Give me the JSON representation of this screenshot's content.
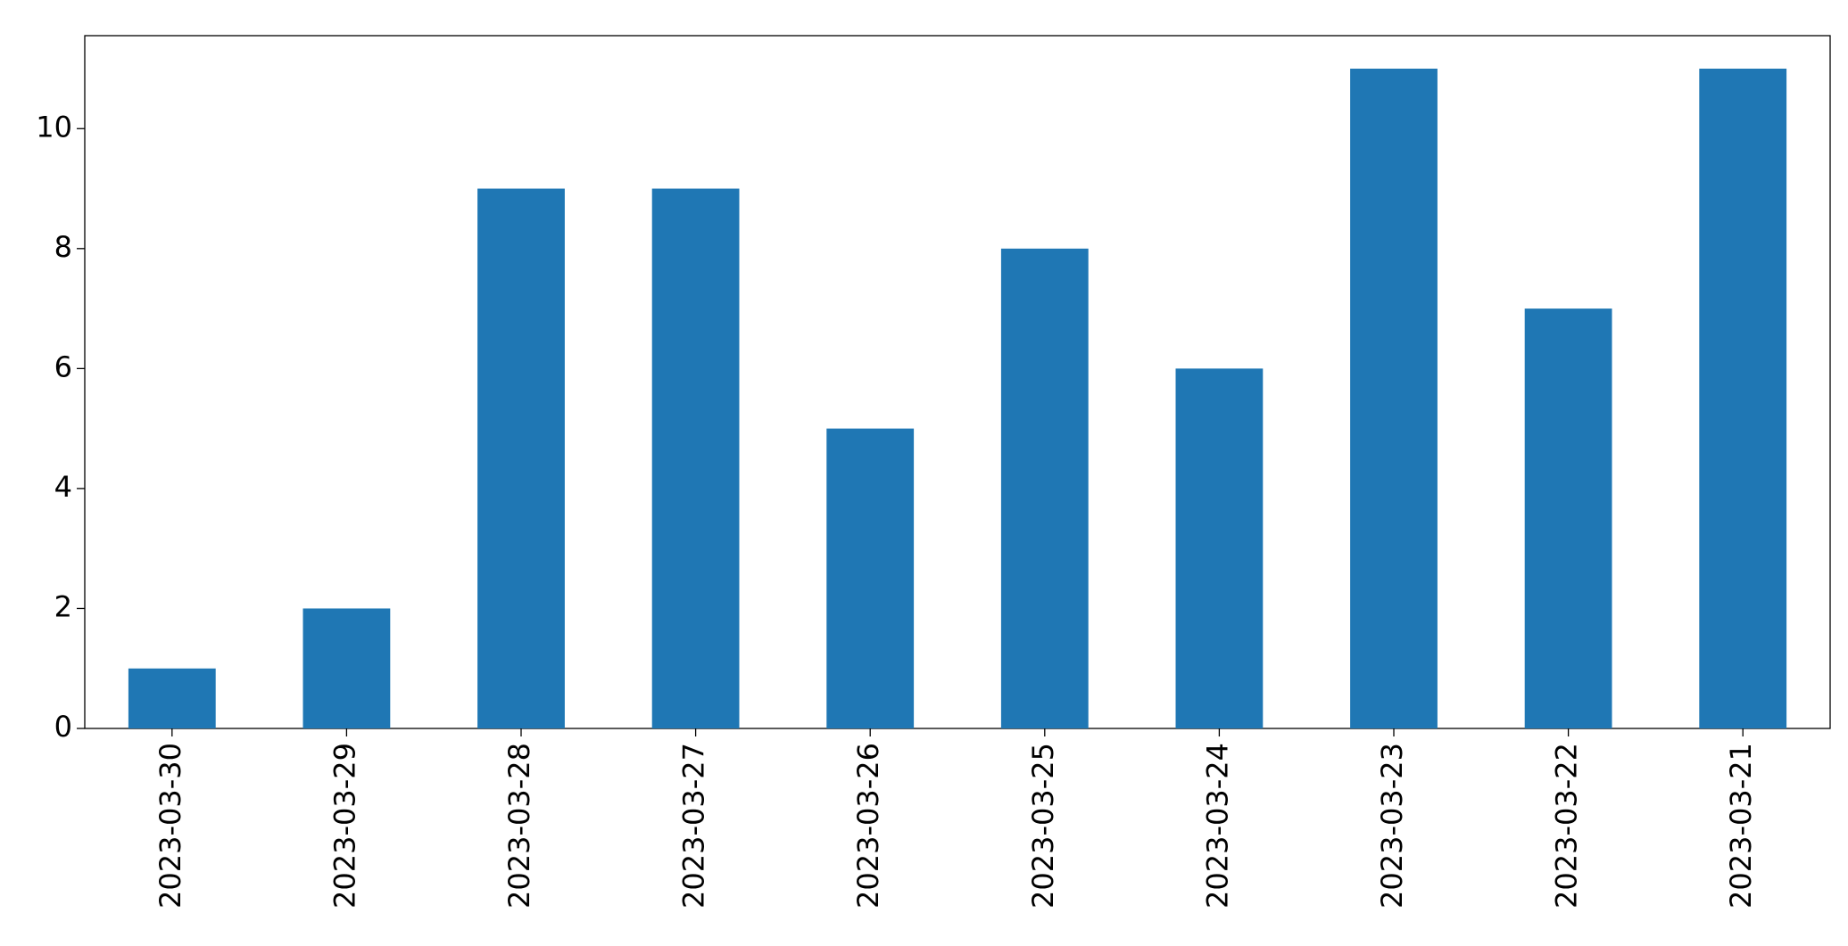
{
  "chart_data": {
    "type": "bar",
    "categories": [
      "2023-03-30",
      "2023-03-29",
      "2023-03-28",
      "2023-03-27",
      "2023-03-26",
      "2023-03-25",
      "2023-03-24",
      "2023-03-23",
      "2023-03-22",
      "2023-03-21"
    ],
    "values": [
      1,
      2,
      9,
      9,
      5,
      8,
      6,
      11,
      7,
      11
    ],
    "color": "#1f77b4",
    "ylim": [
      0,
      11.55
    ],
    "yticks": [
      0,
      2,
      4,
      6,
      8,
      10
    ],
    "grid": false
  }
}
